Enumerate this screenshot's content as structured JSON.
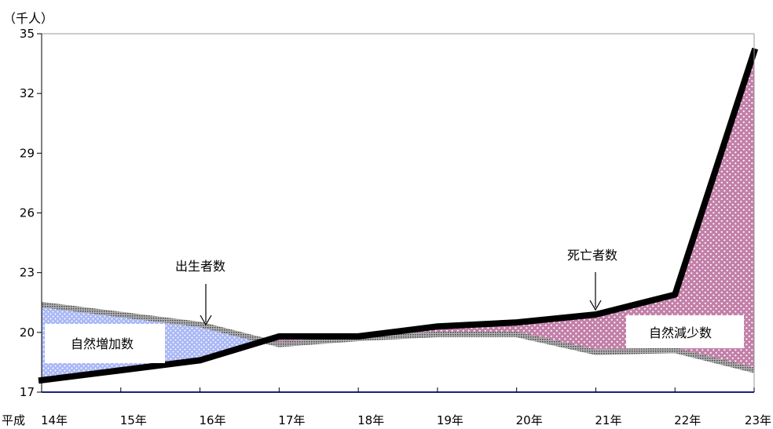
{
  "chart_data": {
    "type": "area",
    "unit_label": "（千人）",
    "x_prefix": "平成",
    "categories": [
      "14年",
      "15年",
      "16年",
      "17年",
      "18年",
      "19年",
      "20年",
      "21年",
      "22年",
      "23年"
    ],
    "ylim": [
      17,
      35
    ],
    "yticks": [
      17,
      20,
      23,
      26,
      29,
      32,
      35
    ],
    "series": [
      {
        "name": "出生者数",
        "values": [
          21.4,
          20.9,
          20.4,
          19.4,
          19.7,
          19.9,
          19.9,
          19.0,
          19.1,
          18.1
        ]
      },
      {
        "name": "死亡者数",
        "values": [
          17.6,
          18.1,
          18.6,
          19.8,
          19.8,
          20.3,
          20.5,
          20.9,
          21.9,
          34.1
        ]
      }
    ],
    "annotations": [
      {
        "text": "出生者数",
        "points_to": "出生者数",
        "category": "16年"
      },
      {
        "text": "死亡者数",
        "points_to": "死亡者数",
        "category": "21年"
      }
    ],
    "region_labels": [
      {
        "text": "自然増加数"
      },
      {
        "text": "自然減少数"
      }
    ],
    "colors": {
      "natural_increase_fill": "#a9b7f5",
      "natural_decrease_fill": "#c27fa8",
      "births_line": "#8a8a8a",
      "deaths_line": "#000000",
      "baseline": "#1a237e"
    },
    "grid": false,
    "legend": "none"
  }
}
